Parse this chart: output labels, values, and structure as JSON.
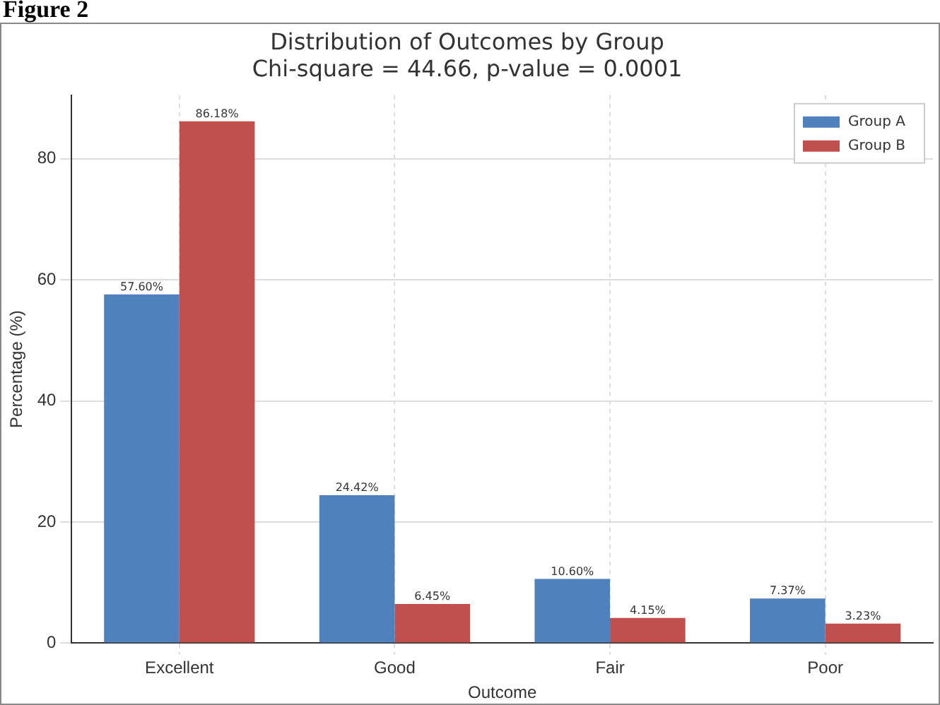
{
  "chart_data": {
    "type": "bar",
    "title": "Distribution of Outcomes by Group",
    "subtitle": "Chi-square = 44.66, p-value = 0.0001",
    "xlabel": "Outcome",
    "ylabel": "Percentage (%)",
    "annotations": [
      "Figure 2"
    ],
    "categories": [
      "Excellent",
      "Good",
      "Fair",
      "Poor"
    ],
    "series": [
      {
        "name": "Group A",
        "color": "#4f81bd",
        "values": [
          57.6,
          24.42,
          10.6,
          7.37
        ],
        "value_labels": [
          "57.60%",
          "24.42%",
          "10.60%",
          "7.37%"
        ]
      },
      {
        "name": "Group B",
        "color": "#c0504d",
        "values": [
          86.18,
          6.45,
          4.15,
          3.23
        ],
        "value_labels": [
          "86.18%",
          "6.45%",
          "4.15%",
          "3.23%"
        ]
      }
    ],
    "ylim": [
      0,
      90.49
    ],
    "yticks": [
      0,
      20,
      40,
      60,
      80
    ],
    "grid": true,
    "legend": "top right"
  }
}
